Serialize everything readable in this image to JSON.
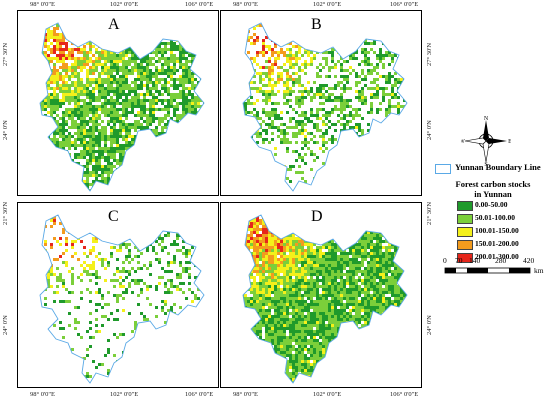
{
  "panels": [
    {
      "label": "A",
      "top_lon": [
        "98° 0'0\"E",
        "102° 0'0\"E",
        "106° 0'0\"E"
      ],
      "coverage": "high"
    },
    {
      "label": "B",
      "top_lon": [
        "98° 0'0\"E",
        "102° 0'0\"E",
        "106° 0'0\"E"
      ],
      "coverage": "medium"
    },
    {
      "label": "C",
      "top_lon": [
        "98° 0'0\"E",
        "102° 0'0\"E",
        "106° 0'0\"E"
      ],
      "coverage": "low"
    },
    {
      "label": "D",
      "top_lon": [
        "98° 0'0\"E",
        "102° 0'0\"E",
        "106° 0'0\"E"
      ],
      "coverage": "very-high"
    }
  ],
  "lon_labels": [
    "98° 0'0\"E",
    "102° 0'0\"E",
    "106° 0'0\"E"
  ],
  "lat_labels": [
    "27° 30'N",
    "24° 0'N",
    "21° 30'N"
  ],
  "compass": {
    "n": "N",
    "e": "E",
    "s": "S",
    "w": "W"
  },
  "legend": {
    "boundary_label": "Yunnan Boundary Line",
    "title": "Forest carbon stocks in Yunnan",
    "classes": [
      {
        "label": "0.00-50.00",
        "color": "#1f9a2b"
      },
      {
        "label": "50.01-100.00",
        "color": "#7bcf3a"
      },
      {
        "label": "100.01-150.00",
        "color": "#f4f01a"
      },
      {
        "label": "150.01-200.00",
        "color": "#f39b1d"
      },
      {
        "label": "200.01-300.00",
        "color": "#e6261b"
      }
    ]
  },
  "scalebar": {
    "ticks": [
      "0",
      "70",
      "140",
      "280",
      "420"
    ],
    "unit": "km"
  },
  "colors": {
    "boundary": "#5aa9e6",
    "panel_border": "#000000"
  }
}
